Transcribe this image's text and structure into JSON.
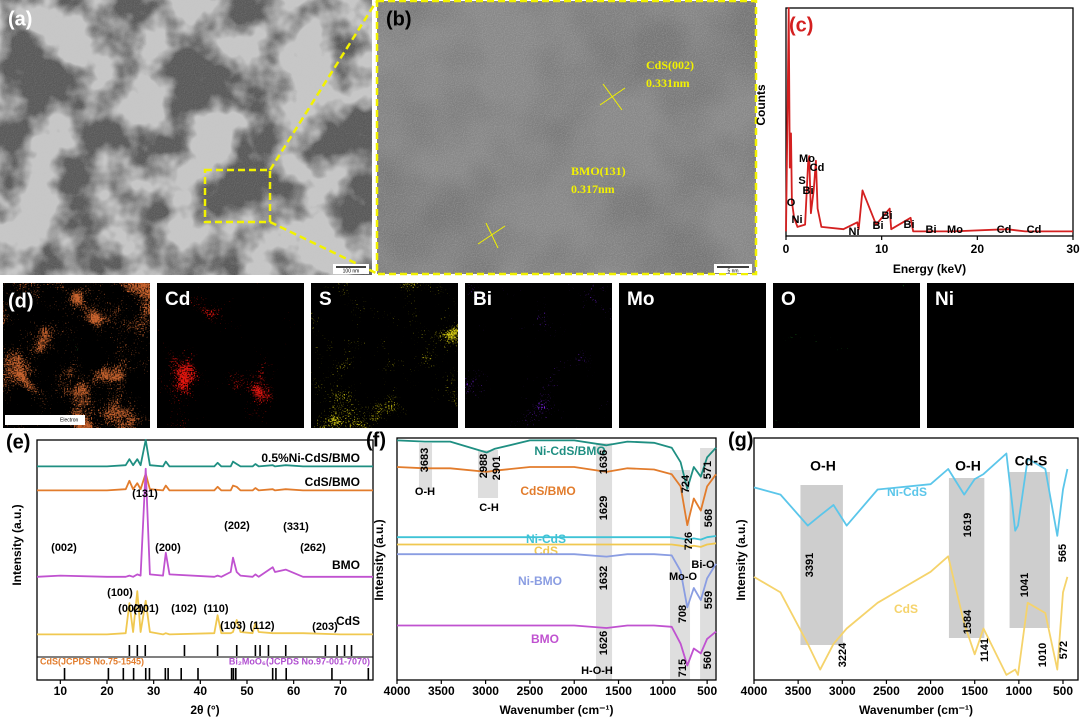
{
  "images": {
    "a": {
      "panel": "(a)",
      "scale_bar": "100 nm"
    },
    "b": {
      "panel": "(b)",
      "scale_bar": "5 nm",
      "annotations": [
        "CdS(002)",
        "0.331nm",
        "BMO(131)",
        "0.317nm"
      ]
    }
  },
  "mapping": {
    "panel": "(d)",
    "legend": "Electron",
    "elements": [
      "Cd",
      "S",
      "Bi",
      "Mo",
      "O",
      "Ni"
    ],
    "colors": [
      "#e3140f",
      "#d9cf12",
      "#7b22ea",
      "#26b9c9",
      "#22c12a",
      "#a83cb8"
    ]
  },
  "chart_data": [
    {
      "type": "line",
      "panel": "(c)",
      "xlabel": "Energy (keV)",
      "ylabel": "Counts",
      "x": [
        0,
        0.18,
        0.28,
        0.4,
        0.52,
        0.62,
        0.85,
        1.2,
        2.0,
        2.31,
        2.42,
        2.6,
        2.9,
        3.13,
        3.3,
        3.7,
        6,
        7.45,
        7.6,
        8.0,
        9.42,
        10.84,
        11.0,
        13.02,
        13.3,
        17.5,
        23.1,
        25,
        30
      ],
      "series": [
        {
          "color": "#d42020",
          "values": [
            2,
            60,
            100,
            30,
            45,
            15,
            8,
            4,
            5,
            32,
            35,
            10,
            20,
            33,
            12,
            4,
            3,
            6,
            3,
            20,
            5,
            12,
            3,
            8,
            2,
            2,
            3,
            2,
            2
          ]
        }
      ],
      "xlim": [
        0,
        30
      ],
      "ylim": [
        0,
        100
      ],
      "xticks": [
        0,
        10,
        20,
        30
      ],
      "annotations": [
        "O",
        "Ni",
        "S",
        "Bi",
        "Mo",
        "Cd",
        "Ni",
        "Bi",
        "Bi",
        "Bi",
        "Bi",
        "Mo",
        "Cd",
        "Cd"
      ]
    },
    {
      "type": "line",
      "panel": "(e)",
      "xlabel": "2θ (°)",
      "ylabel": "Intensity (a.u.)",
      "x": [
        5,
        10,
        20,
        24,
        24.8,
        25.6,
        26.5,
        27.2,
        28.3,
        29.2,
        32,
        32.6,
        33.4,
        43,
        43.7,
        44.5,
        46.5,
        47,
        47.8,
        48.6,
        51.2,
        51.8,
        52.5,
        55.5,
        56,
        58.3,
        62,
        70,
        77
      ],
      "series": [
        {
          "name": "0.5%Ni-CdS/BMO",
          "color": "#1f8f82",
          "values": [
            89,
            89,
            89,
            89.5,
            92,
            89.5,
            92,
            89.5,
            100,
            89.5,
            89,
            91,
            89,
            89,
            90.5,
            89,
            89,
            91,
            90,
            89,
            89,
            90,
            89,
            89.5,
            89,
            89.5,
            89,
            89,
            89
          ]
        },
        {
          "name": "CdS/BMO",
          "color": "#e27c2c",
          "values": [
            79,
            79,
            79,
            79.5,
            83,
            79.5,
            82,
            79.5,
            86,
            79.5,
            79,
            81,
            79,
            79,
            80.5,
            79,
            79,
            81,
            80.5,
            79,
            79,
            80,
            79,
            79.5,
            79,
            79.5,
            79,
            79,
            79
          ]
        },
        {
          "name": "BMO",
          "color": "#c052d0",
          "values": [
            43,
            43.5,
            43,
            43,
            43.5,
            43,
            44,
            43.5,
            88,
            44,
            43.5,
            53,
            44,
            43,
            43.5,
            43,
            45,
            51,
            45,
            43.5,
            43,
            44,
            43,
            47,
            45,
            46,
            43,
            43,
            43
          ]
        },
        {
          "name": "CdS",
          "color": "#f0c850",
          "values": [
            19,
            19,
            19,
            19.5,
            32,
            20,
            37,
            20,
            33,
            20,
            19,
            19.5,
            19,
            19.5,
            27,
            19.5,
            19.5,
            20,
            25,
            20,
            19.5,
            24,
            20,
            19.5,
            19.5,
            19.5,
            19.5,
            19,
            19
          ]
        }
      ],
      "references": [
        {
          "name": "CdS(JCPDS No.75-1545)",
          "color": "#e27c2c",
          "positions": [
            24.8,
            26.5,
            28.2,
            36.6,
            43.7,
            47.8,
            51.8,
            52.8,
            54.6,
            58.3,
            66.8,
            69.3,
            70.9,
            72.4
          ]
        },
        {
          "name": "Bi₂MoO₆(JCPDS No.97-001-7070)",
          "color": "#b04ed0",
          "positions": [
            10.9,
            20.3,
            23.5,
            25.7,
            28.3,
            29.1,
            32.5,
            33.1,
            35.9,
            39.5,
            46.7,
            47.1,
            47.6,
            55.5,
            56.2,
            58.4,
            68.2,
            76
          ]
        }
      ],
      "xlim": [
        5,
        77
      ],
      "ylim": [
        0,
        100
      ],
      "xticks": [
        10,
        20,
        30,
        40,
        50,
        60,
        70
      ],
      "annotations": [
        "(002)",
        "(131)",
        "(200)",
        "(202)",
        "(331)",
        "(262)",
        "(100)",
        "(002)",
        "(101)",
        "(102)",
        "(110)",
        "(103)",
        "(112)",
        "(203)"
      ]
    },
    {
      "type": "line",
      "panel": "(f)",
      "xlabel": "Wavenumber (cm⁻¹)",
      "ylabel": "Intensity (a.u.)",
      "x": [
        4000,
        3683,
        3400,
        2988,
        2901,
        2500,
        2000,
        1636,
        1400,
        1100,
        900,
        800,
        724,
        650,
        571,
        500,
        400
      ],
      "series": [
        {
          "name": "Ni-CdS/BMO",
          "color": "#1f8f82",
          "values": [
            99,
            98.5,
            98.5,
            94,
            95.5,
            99,
            99,
            97,
            98.5,
            98,
            96,
            90,
            79,
            88,
            84,
            92,
            96
          ]
        },
        {
          "name": "CdS/BMO",
          "color": "#e27c2c",
          "values": [
            88,
            87.5,
            87.5,
            86,
            86.5,
            88,
            88,
            86,
            87.5,
            87,
            85,
            80,
            64,
            75,
            70,
            80,
            85
          ]
        },
        {
          "name": "Ni-CdS",
          "color": "#3fc3d6",
          "values": [
            59,
            59,
            59,
            59,
            59,
            59,
            59,
            59,
            59,
            59,
            59,
            58.5,
            58,
            58.5,
            58,
            59,
            59.5
          ]
        },
        {
          "name": "CdS",
          "color": "#f0c850",
          "values": [
            56,
            56,
            56,
            56,
            56,
            56,
            56,
            56,
            56,
            56,
            56,
            55.5,
            55,
            55.5,
            55,
            56,
            56.5
          ]
        },
        {
          "name": "Ni-BMO",
          "color": "#8a9de2",
          "values": [
            52,
            52,
            52,
            52,
            52,
            52,
            52,
            51,
            52,
            52,
            51.5,
            45,
            30,
            38,
            33,
            42,
            48
          ]
        },
        {
          "name": "BMO",
          "color": "#c052d0",
          "values": [
            22.5,
            22.5,
            22.5,
            22.5,
            22.5,
            22.5,
            22.5,
            21.5,
            22.5,
            22.5,
            22,
            15,
            6,
            13,
            11,
            17,
            20
          ]
        }
      ],
      "bands": [
        [
          3752,
          3605
        ],
        [
          3086,
          2860
        ],
        [
          1754,
          1573
        ],
        [
          919,
          693
        ],
        [
          580,
          411
        ]
      ],
      "xlim": [
        4000,
        400
      ],
      "ylim": [
        0,
        100
      ],
      "xticks": [
        4000,
        3500,
        3000,
        2500,
        2000,
        1500,
        1000,
        500
      ],
      "annotations": [
        "3683",
        "2988",
        "2901",
        "1636",
        "724",
        "571",
        "O-H",
        "C-H",
        "1629",
        "726",
        "568",
        "1632",
        "Mo-O",
        "Bi-O",
        "708",
        "559",
        "1626",
        "715",
        "560",
        "H-O-H"
      ]
    },
    {
      "type": "line",
      "panel": "(g)",
      "xlabel": "Wavenumber (cm⁻¹)",
      "ylabel": "Intensity (a.u.)",
      "x": [
        4000,
        3700,
        3391,
        3250,
        3100,
        2950,
        2600,
        2000,
        1800,
        1619,
        1500,
        1400,
        1141,
        1041,
        1010,
        900,
        700,
        565,
        500,
        450
      ],
      "series": [
        {
          "name": "Ni-CdS",
          "color": "#5bc6ea",
          "values": [
            79.6,
            76.6,
            63.8,
            68,
            72.3,
            63.8,
            78.7,
            80.9,
            87.2,
            76.6,
            83,
            85.1,
            93.6,
            61.7,
            63.8,
            91.5,
            87.2,
            59.6,
            78.7,
            87.2
          ]
        },
        {
          "name": "CdS",
          "color": "#f5d36b",
          "values": [
            42.6,
            36.2,
            14.9,
            4.3,
            14.9,
            21.3,
            31.9,
            44.7,
            51.1,
            23.4,
            10.6,
            21.3,
            2.1,
            4.3,
            2.1,
            31.9,
            27.7,
            4.3,
            36.2,
            42.6
          ]
        }
      ],
      "bands": [
        [
          3474,
          2993
        ],
        [
          1792,
          1391
        ],
        [
          1105,
          648
        ]
      ],
      "xlim": [
        4000,
        330
      ],
      "ylim": [
        0,
        100
      ],
      "xticks": [
        4000,
        3500,
        3000,
        2500,
        2000,
        1500,
        1000,
        500
      ],
      "annotations": [
        "O-H",
        "O-H",
        "Cd-S",
        "3391",
        "3224",
        "1619",
        "1584",
        "1141",
        "1041",
        "1010",
        "565",
        "572"
      ]
    }
  ]
}
